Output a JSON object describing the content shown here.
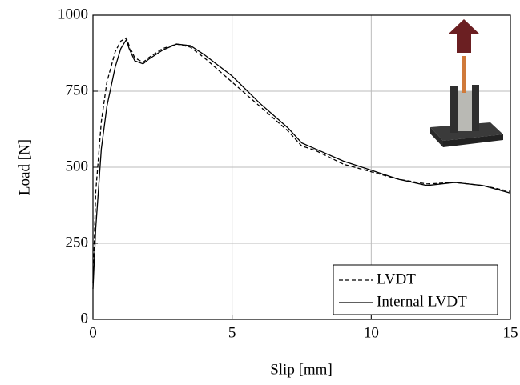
{
  "chart_data": {
    "type": "line",
    "x_label": "Slip [mm]",
    "y_label": "Load [N]",
    "xlim": [
      0,
      15
    ],
    "ylim": [
      0,
      1000
    ],
    "xticks": [
      0,
      5,
      10,
      15
    ],
    "yticks": [
      0,
      250,
      500,
      750,
      1000
    ],
    "grid": true,
    "legend": "lower right",
    "series": [
      {
        "name": "LVDT",
        "color": "#000000",
        "linestyle": "dashed",
        "x": [
          0,
          0.1,
          0.3,
          0.5,
          0.8,
          1.0,
          1.2,
          1.3,
          1.5,
          1.8,
          2.0,
          2.5,
          3.0,
          3.5,
          4.0,
          5.0,
          6.0,
          7.0,
          7.5,
          8.0,
          9.0,
          10.0,
          11.0,
          12.0,
          13.0,
          14.0,
          15.0
        ],
        "values": [
          120,
          420,
          650,
          780,
          880,
          915,
          925,
          900,
          860,
          845,
          860,
          890,
          905,
          895,
          860,
          780,
          700,
          620,
          570,
          555,
          510,
          485,
          460,
          445,
          450,
          440,
          420
        ]
      },
      {
        "name": "Internal LVDT",
        "color": "#000000",
        "linestyle": "solid",
        "x": [
          0,
          0.1,
          0.3,
          0.5,
          0.8,
          1.0,
          1.2,
          1.3,
          1.5,
          1.8,
          2.0,
          2.5,
          3.0,
          3.5,
          4.0,
          5.0,
          6.0,
          7.0,
          7.5,
          8.0,
          9.0,
          10.0,
          11.0,
          12.0,
          13.0,
          14.0,
          15.0
        ],
        "values": [
          100,
          300,
          560,
          700,
          830,
          890,
          920,
          890,
          850,
          840,
          855,
          885,
          905,
          900,
          870,
          800,
          710,
          630,
          580,
          560,
          520,
          490,
          460,
          440,
          450,
          440,
          415
        ]
      }
    ]
  }
}
